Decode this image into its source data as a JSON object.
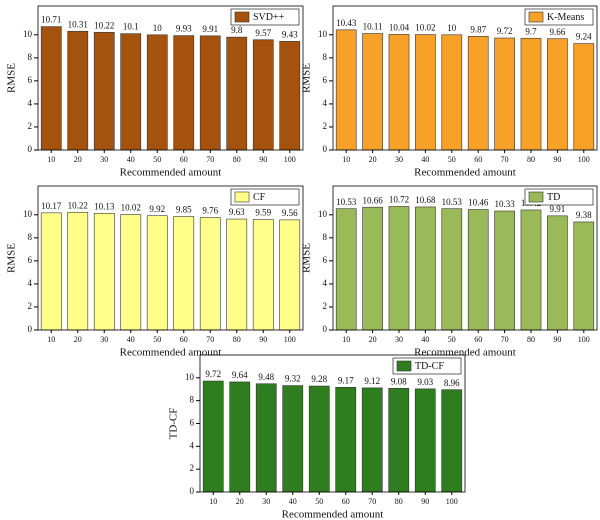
{
  "chart_data": [
    {
      "type": "bar",
      "x_label": "Recommended amount",
      "y_label": "RMSE",
      "categories": [
        "10",
        "20",
        "30",
        "40",
        "50",
        "60",
        "70",
        "80",
        "90",
        "100"
      ],
      "series": [
        {
          "name": "SVD++",
          "color": "#a5520e",
          "values": [
            10.71,
            10.31,
            10.22,
            10.1,
            10,
            9.93,
            9.91,
            9.8,
            9.57,
            9.43
          ]
        }
      ],
      "ylim": [
        0,
        12.5
      ],
      "yticks": [
        0,
        2,
        4,
        6,
        8,
        10
      ],
      "legend": "upper right"
    },
    {
      "type": "bar",
      "x_label": "Recommended amount",
      "y_label": "RMSE",
      "categories": [
        "10",
        "20",
        "30",
        "40",
        "50",
        "60",
        "70",
        "80",
        "90",
        "100"
      ],
      "series": [
        {
          "name": "K-Means",
          "color": "#f7a128",
          "values": [
            10.43,
            10.11,
            10.04,
            10.02,
            10,
            9.87,
            9.72,
            9.7,
            9.66,
            9.24
          ]
        }
      ],
      "ylim": [
        0,
        12.5
      ],
      "yticks": [
        0,
        2,
        4,
        6,
        8,
        10
      ],
      "legend": "upper right"
    },
    {
      "type": "bar",
      "x_label": "Recommended amount",
      "y_label": "RMSE",
      "categories": [
        "10",
        "20",
        "30",
        "40",
        "50",
        "60",
        "70",
        "80",
        "90",
        "100"
      ],
      "series": [
        {
          "name": "CF",
          "color": "#ffff8a",
          "values": [
            10.17,
            10.22,
            10.13,
            10.02,
            9.92,
            9.85,
            9.76,
            9.63,
            9.59,
            9.56
          ]
        }
      ],
      "ylim": [
        0,
        12.5
      ],
      "yticks": [
        0,
        2,
        4,
        6,
        8,
        10
      ],
      "legend": "upper right"
    },
    {
      "type": "bar",
      "x_label": "Recommended amount",
      "y_label": "RMSE",
      "categories": [
        "10",
        "20",
        "30",
        "40",
        "50",
        "60",
        "70",
        "80",
        "90",
        "100"
      ],
      "series": [
        {
          "name": "TD",
          "color": "#9aba59",
          "values": [
            10.53,
            10.66,
            10.72,
            10.68,
            10.53,
            10.46,
            10.33,
            10.42,
            9.91,
            9.38
          ]
        }
      ],
      "ylim": [
        0,
        12.5
      ],
      "yticks": [
        0,
        2,
        4,
        6,
        8,
        10
      ],
      "legend": "upper right"
    },
    {
      "type": "bar",
      "x_label": "Recommended amount",
      "y_label": "TD-CF",
      "categories": [
        "10",
        "20",
        "30",
        "40",
        "50",
        "60",
        "70",
        "80",
        "90",
        "100"
      ],
      "series": [
        {
          "name": "TD-CF",
          "color": "#2e7d1f",
          "values": [
            9.72,
            9.64,
            9.48,
            9.32,
            9.28,
            9.17,
            9.12,
            9.08,
            9.03,
            8.96
          ]
        }
      ],
      "ylim": [
        0,
        12
      ],
      "yticks": [
        0,
        2,
        4,
        6,
        8,
        10
      ],
      "legend": "upper right"
    }
  ]
}
